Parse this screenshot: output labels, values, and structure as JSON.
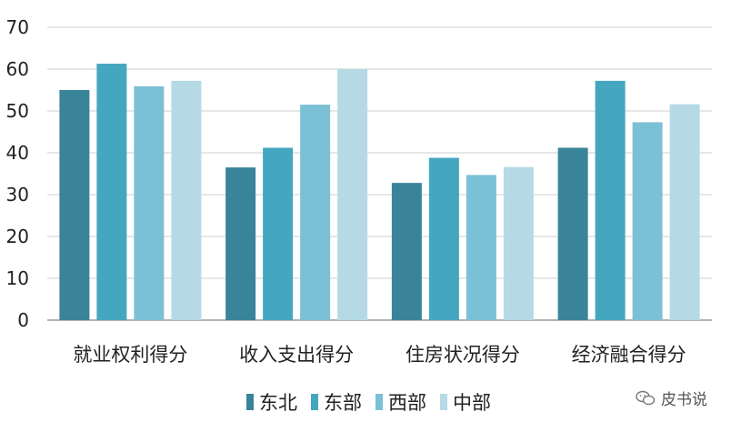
{
  "chart_data": {
    "type": "bar",
    "categories": [
      "就业权利得分",
      "收入支出得分",
      "住房状况得分",
      "经济融合得分"
    ],
    "series": [
      {
        "name": "东北",
        "color": "#3a8499",
        "values": [
          55,
          36.5,
          32.8,
          41.2
        ]
      },
      {
        "name": "东部",
        "color": "#45a6c0",
        "values": [
          61.3,
          41.2,
          38.8,
          57.2
        ]
      },
      {
        "name": "西部",
        "color": "#7cc0d5",
        "values": [
          55.9,
          51.5,
          34.7,
          47.3
        ]
      },
      {
        "name": "中部",
        "color": "#b6d9e6",
        "values": [
          57.2,
          60,
          36.6,
          51.6
        ]
      }
    ],
    "yticks": [
      0,
      10,
      20,
      30,
      40,
      50,
      60,
      70
    ],
    "ylim": [
      0,
      70
    ],
    "grid": true,
    "legend_position": "bottom-center",
    "title": "",
    "xlabel": "",
    "ylabel": ""
  },
  "watermark": {
    "text": "皮书说",
    "icon": "wechat-icon"
  }
}
